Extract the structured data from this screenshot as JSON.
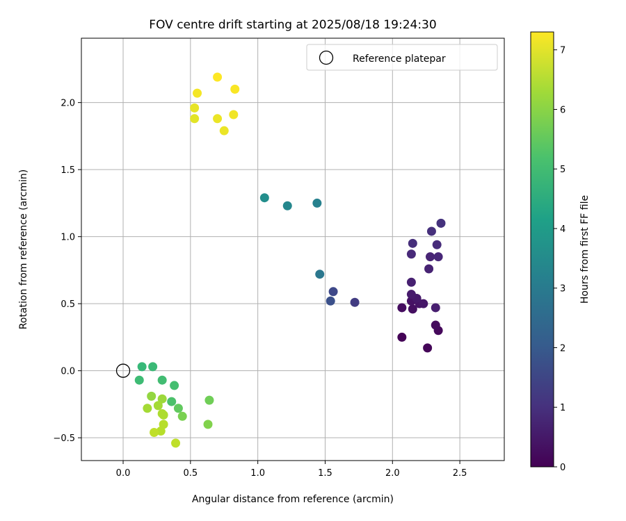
{
  "chart_data": {
    "type": "scatter",
    "title": "FOV centre drift starting at 2025/08/18 19:24:30",
    "xlabel": "Angular distance from reference (arcmin)",
    "ylabel": "Rotation from reference (arcmin)",
    "xlim": [
      -0.31,
      2.83
    ],
    "ylim": [
      -0.67,
      2.48
    ],
    "xticks": [
      0.0,
      0.5,
      1.0,
      1.5,
      2.0,
      2.5
    ],
    "yticks": [
      -0.5,
      0.0,
      0.5,
      1.0,
      1.5,
      2.0
    ],
    "xtick_labels": [
      "0.0",
      "0.5",
      "1.0",
      "1.5",
      "2.0",
      "2.5"
    ],
    "ytick_labels": [
      "−0.5",
      "0.0",
      "0.5",
      "1.0",
      "1.5",
      "2.0"
    ],
    "grid": true,
    "legend": {
      "placement": "top-right",
      "entries": [
        "Reference platepar"
      ]
    },
    "reference_point": {
      "x": 0.0,
      "y": 0.0
    },
    "colorbar": {
      "label": "Hours from first FF file",
      "colormap": "viridis",
      "range": [
        0,
        7.3
      ],
      "ticks": [
        0,
        1,
        2,
        3,
        4,
        5,
        6,
        7
      ],
      "tick_labels": [
        "0",
        "1",
        "2",
        "3",
        "4",
        "5",
        "6",
        "7"
      ]
    },
    "points": [
      {
        "x": 2.07,
        "y": 0.25,
        "hours": 0.05
      },
      {
        "x": 2.26,
        "y": 0.17,
        "hours": 0.1
      },
      {
        "x": 2.34,
        "y": 0.3,
        "hours": 0.15
      },
      {
        "x": 2.32,
        "y": 0.34,
        "hours": 0.2
      },
      {
        "x": 2.07,
        "y": 0.47,
        "hours": 0.25
      },
      {
        "x": 2.15,
        "y": 0.46,
        "hours": 0.3
      },
      {
        "x": 2.14,
        "y": 0.52,
        "hours": 0.35
      },
      {
        "x": 2.2,
        "y": 0.5,
        "hours": 0.4
      },
      {
        "x": 2.23,
        "y": 0.5,
        "hours": 0.45
      },
      {
        "x": 2.18,
        "y": 0.54,
        "hours": 0.5
      },
      {
        "x": 2.14,
        "y": 0.57,
        "hours": 0.55
      },
      {
        "x": 2.32,
        "y": 0.47,
        "hours": 0.6
      },
      {
        "x": 2.14,
        "y": 0.66,
        "hours": 0.65
      },
      {
        "x": 2.27,
        "y": 0.76,
        "hours": 0.7
      },
      {
        "x": 2.28,
        "y": 0.85,
        "hours": 0.75
      },
      {
        "x": 2.34,
        "y": 0.85,
        "hours": 0.8
      },
      {
        "x": 2.14,
        "y": 0.87,
        "hours": 0.85
      },
      {
        "x": 2.33,
        "y": 0.94,
        "hours": 0.9
      },
      {
        "x": 2.15,
        "y": 0.95,
        "hours": 0.95
      },
      {
        "x": 2.29,
        "y": 1.04,
        "hours": 1.0
      },
      {
        "x": 2.36,
        "y": 1.1,
        "hours": 1.05
      },
      {
        "x": 1.72,
        "y": 0.51,
        "hours": 1.3
      },
      {
        "x": 1.56,
        "y": 0.59,
        "hours": 1.6
      },
      {
        "x": 1.54,
        "y": 0.52,
        "hours": 1.8
      },
      {
        "x": 1.46,
        "y": 0.72,
        "hours": 2.9
      },
      {
        "x": 1.44,
        "y": 1.25,
        "hours": 3.2
      },
      {
        "x": 1.22,
        "y": 1.23,
        "hours": 3.4
      },
      {
        "x": 1.05,
        "y": 1.29,
        "hours": 3.6
      },
      {
        "x": 0.14,
        "y": 0.03,
        "hours": 4.9
      },
      {
        "x": 0.22,
        "y": 0.03,
        "hours": 4.95
      },
      {
        "x": 0.12,
        "y": -0.07,
        "hours": 5.0
      },
      {
        "x": 0.29,
        "y": -0.07,
        "hours": 5.05
      },
      {
        "x": 0.38,
        "y": -0.11,
        "hours": 5.1
      },
      {
        "x": 0.36,
        "y": -0.23,
        "hours": 5.2
      },
      {
        "x": 0.41,
        "y": -0.28,
        "hours": 5.5
      },
      {
        "x": 0.64,
        "y": -0.22,
        "hours": 5.7
      },
      {
        "x": 0.44,
        "y": -0.34,
        "hours": 5.8
      },
      {
        "x": 0.63,
        "y": -0.4,
        "hours": 5.9
      },
      {
        "x": 0.21,
        "y": -0.19,
        "hours": 6.1
      },
      {
        "x": 0.29,
        "y": -0.21,
        "hours": 6.2
      },
      {
        "x": 0.26,
        "y": -0.26,
        "hours": 6.3
      },
      {
        "x": 0.18,
        "y": -0.28,
        "hours": 6.3
      },
      {
        "x": 0.29,
        "y": -0.32,
        "hours": 6.4
      },
      {
        "x": 0.3,
        "y": -0.33,
        "hours": 6.4
      },
      {
        "x": 0.3,
        "y": -0.4,
        "hours": 6.5
      },
      {
        "x": 0.28,
        "y": -0.45,
        "hours": 6.5
      },
      {
        "x": 0.23,
        "y": -0.46,
        "hours": 6.6
      },
      {
        "x": 0.39,
        "y": -0.54,
        "hours": 6.6
      },
      {
        "x": 0.53,
        "y": 1.88,
        "hours": 7.0
      },
      {
        "x": 0.53,
        "y": 1.96,
        "hours": 7.05
      },
      {
        "x": 0.75,
        "y": 1.79,
        "hours": 7.1
      },
      {
        "x": 0.7,
        "y": 1.88,
        "hours": 7.1
      },
      {
        "x": 0.82,
        "y": 1.91,
        "hours": 7.15
      },
      {
        "x": 0.55,
        "y": 2.07,
        "hours": 7.2
      },
      {
        "x": 0.83,
        "y": 2.1,
        "hours": 7.25
      },
      {
        "x": 0.7,
        "y": 2.19,
        "hours": 7.3
      }
    ]
  }
}
